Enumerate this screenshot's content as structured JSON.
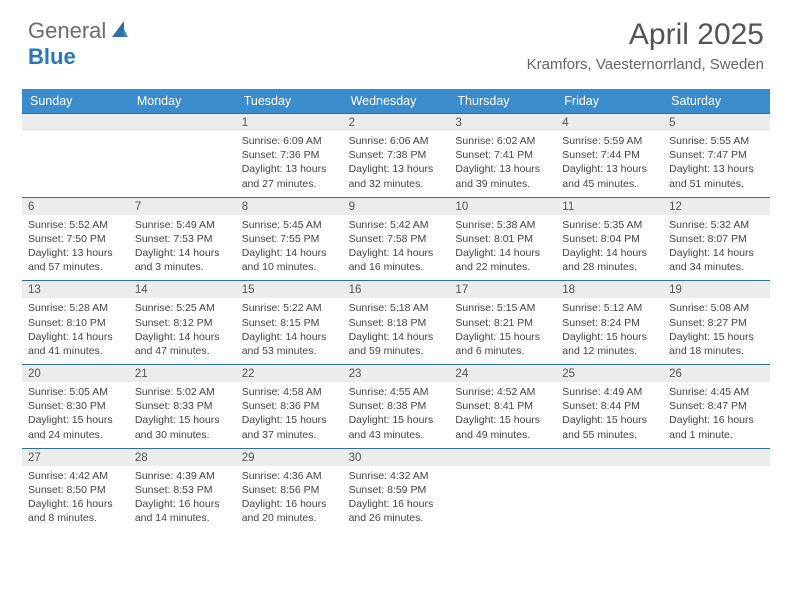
{
  "logo": {
    "general": "General",
    "blue": "Blue"
  },
  "title": "April 2025",
  "location": "Kramfors, Vaesternorrland, Sweden",
  "colors": {
    "header_bg": "#3b8ccc",
    "header_text": "#ffffff",
    "daynum_bg": "#ececec",
    "daynum_border": "#2f6fa6",
    "body_text": "#444444",
    "logo_blue": "#2976b9",
    "logo_gray": "#6b6b6b"
  },
  "day_names": [
    "Sunday",
    "Monday",
    "Tuesday",
    "Wednesday",
    "Thursday",
    "Friday",
    "Saturday"
  ],
  "weeks": [
    [
      {
        "blank": true
      },
      {
        "blank": true
      },
      {
        "day": "1",
        "sunrise": "Sunrise: 6:09 AM",
        "sunset": "Sunset: 7:36 PM",
        "daylight": "Daylight: 13 hours and 27 minutes."
      },
      {
        "day": "2",
        "sunrise": "Sunrise: 6:06 AM",
        "sunset": "Sunset: 7:38 PM",
        "daylight": "Daylight: 13 hours and 32 minutes."
      },
      {
        "day": "3",
        "sunrise": "Sunrise: 6:02 AM",
        "sunset": "Sunset: 7:41 PM",
        "daylight": "Daylight: 13 hours and 39 minutes."
      },
      {
        "day": "4",
        "sunrise": "Sunrise: 5:59 AM",
        "sunset": "Sunset: 7:44 PM",
        "daylight": "Daylight: 13 hours and 45 minutes."
      },
      {
        "day": "5",
        "sunrise": "Sunrise: 5:55 AM",
        "sunset": "Sunset: 7:47 PM",
        "daylight": "Daylight: 13 hours and 51 minutes."
      }
    ],
    [
      {
        "day": "6",
        "sunrise": "Sunrise: 5:52 AM",
        "sunset": "Sunset: 7:50 PM",
        "daylight": "Daylight: 13 hours and 57 minutes."
      },
      {
        "day": "7",
        "sunrise": "Sunrise: 5:49 AM",
        "sunset": "Sunset: 7:53 PM",
        "daylight": "Daylight: 14 hours and 3 minutes."
      },
      {
        "day": "8",
        "sunrise": "Sunrise: 5:45 AM",
        "sunset": "Sunset: 7:55 PM",
        "daylight": "Daylight: 14 hours and 10 minutes."
      },
      {
        "day": "9",
        "sunrise": "Sunrise: 5:42 AM",
        "sunset": "Sunset: 7:58 PM",
        "daylight": "Daylight: 14 hours and 16 minutes."
      },
      {
        "day": "10",
        "sunrise": "Sunrise: 5:38 AM",
        "sunset": "Sunset: 8:01 PM",
        "daylight": "Daylight: 14 hours and 22 minutes."
      },
      {
        "day": "11",
        "sunrise": "Sunrise: 5:35 AM",
        "sunset": "Sunset: 8:04 PM",
        "daylight": "Daylight: 14 hours and 28 minutes."
      },
      {
        "day": "12",
        "sunrise": "Sunrise: 5:32 AM",
        "sunset": "Sunset: 8:07 PM",
        "daylight": "Daylight: 14 hours and 34 minutes."
      }
    ],
    [
      {
        "day": "13",
        "sunrise": "Sunrise: 5:28 AM",
        "sunset": "Sunset: 8:10 PM",
        "daylight": "Daylight: 14 hours and 41 minutes."
      },
      {
        "day": "14",
        "sunrise": "Sunrise: 5:25 AM",
        "sunset": "Sunset: 8:12 PM",
        "daylight": "Daylight: 14 hours and 47 minutes."
      },
      {
        "day": "15",
        "sunrise": "Sunrise: 5:22 AM",
        "sunset": "Sunset: 8:15 PM",
        "daylight": "Daylight: 14 hours and 53 minutes."
      },
      {
        "day": "16",
        "sunrise": "Sunrise: 5:18 AM",
        "sunset": "Sunset: 8:18 PM",
        "daylight": "Daylight: 14 hours and 59 minutes."
      },
      {
        "day": "17",
        "sunrise": "Sunrise: 5:15 AM",
        "sunset": "Sunset: 8:21 PM",
        "daylight": "Daylight: 15 hours and 6 minutes."
      },
      {
        "day": "18",
        "sunrise": "Sunrise: 5:12 AM",
        "sunset": "Sunset: 8:24 PM",
        "daylight": "Daylight: 15 hours and 12 minutes."
      },
      {
        "day": "19",
        "sunrise": "Sunrise: 5:08 AM",
        "sunset": "Sunset: 8:27 PM",
        "daylight": "Daylight: 15 hours and 18 minutes."
      }
    ],
    [
      {
        "day": "20",
        "sunrise": "Sunrise: 5:05 AM",
        "sunset": "Sunset: 8:30 PM",
        "daylight": "Daylight: 15 hours and 24 minutes."
      },
      {
        "day": "21",
        "sunrise": "Sunrise: 5:02 AM",
        "sunset": "Sunset: 8:33 PM",
        "daylight": "Daylight: 15 hours and 30 minutes."
      },
      {
        "day": "22",
        "sunrise": "Sunrise: 4:58 AM",
        "sunset": "Sunset: 8:36 PM",
        "daylight": "Daylight: 15 hours and 37 minutes."
      },
      {
        "day": "23",
        "sunrise": "Sunrise: 4:55 AM",
        "sunset": "Sunset: 8:38 PM",
        "daylight": "Daylight: 15 hours and 43 minutes."
      },
      {
        "day": "24",
        "sunrise": "Sunrise: 4:52 AM",
        "sunset": "Sunset: 8:41 PM",
        "daylight": "Daylight: 15 hours and 49 minutes."
      },
      {
        "day": "25",
        "sunrise": "Sunrise: 4:49 AM",
        "sunset": "Sunset: 8:44 PM",
        "daylight": "Daylight: 15 hours and 55 minutes."
      },
      {
        "day": "26",
        "sunrise": "Sunrise: 4:45 AM",
        "sunset": "Sunset: 8:47 PM",
        "daylight": "Daylight: 16 hours and 1 minute."
      }
    ],
    [
      {
        "day": "27",
        "sunrise": "Sunrise: 4:42 AM",
        "sunset": "Sunset: 8:50 PM",
        "daylight": "Daylight: 16 hours and 8 minutes."
      },
      {
        "day": "28",
        "sunrise": "Sunrise: 4:39 AM",
        "sunset": "Sunset: 8:53 PM",
        "daylight": "Daylight: 16 hours and 14 minutes."
      },
      {
        "day": "29",
        "sunrise": "Sunrise: 4:36 AM",
        "sunset": "Sunset: 8:56 PM",
        "daylight": "Daylight: 16 hours and 20 minutes."
      },
      {
        "day": "30",
        "sunrise": "Sunrise: 4:32 AM",
        "sunset": "Sunset: 8:59 PM",
        "daylight": "Daylight: 16 hours and 26 minutes."
      },
      {
        "blank": true
      },
      {
        "blank": true
      },
      {
        "blank": true
      }
    ]
  ]
}
